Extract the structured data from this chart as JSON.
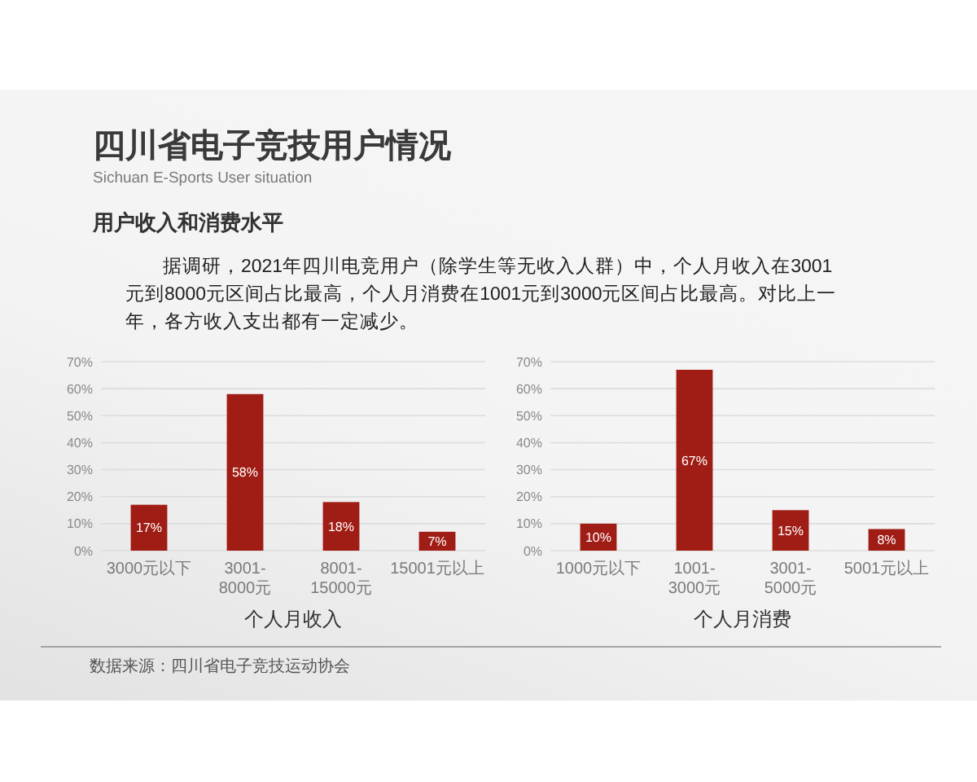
{
  "chart_data": [
    {
      "type": "bar",
      "title": "四川省电子竞技用户情况",
      "subtitle": "Sichuan E-Sports User situation",
      "annotations": [
        "用户收入和消费水平",
        "据调研，2021年四川电竞用户（除学生等无收入人群）中，个人月收入在3001元到8000元区间占比最高，个人月消费在1001元到3000元区间占比最高。对比上一年，各方收入支出都有一定减少。",
        "数据来源：四川省电子竞技运动协会"
      ],
      "xlabel": "个人月收入",
      "categories": [
        "3000元以下",
        "3001-8000元",
        "8001-15000元",
        "15001元以上"
      ],
      "values": [
        17,
        58,
        18,
        7
      ],
      "value_labels": [
        "17%",
        "58%",
        "18%",
        "7%"
      ],
      "color": "#a01d15",
      "ylim": [
        0,
        70
      ],
      "yticks": [
        {
          "value": 0,
          "label": "0%"
        },
        {
          "value": 10,
          "label": "10%"
        },
        {
          "value": 20,
          "label": "20%"
        },
        {
          "value": 30,
          "label": "30%"
        },
        {
          "value": 40,
          "label": "40%"
        },
        {
          "value": 50,
          "label": "50%"
        },
        {
          "value": 60,
          "label": "60%"
        },
        {
          "value": 70,
          "label": "70%"
        }
      ],
      "grid": "y"
    },
    {
      "type": "bar",
      "xlabel": "个人月消费",
      "categories": [
        "1000元以下",
        "1001-3000元",
        "3001-5000元",
        "5001元以上"
      ],
      "values": [
        10,
        67,
        15,
        8
      ],
      "value_labels": [
        "10%",
        "67%",
        "15%",
        "8%"
      ],
      "color": "#a01d15",
      "ylim": [
        0,
        70
      ],
      "yticks": [
        {
          "value": 0,
          "label": "0%"
        },
        {
          "value": 10,
          "label": "10%"
        },
        {
          "value": 20,
          "label": "20%"
        },
        {
          "value": 30,
          "label": "30%"
        },
        {
          "value": 40,
          "label": "40%"
        },
        {
          "value": 50,
          "label": "50%"
        },
        {
          "value": 60,
          "label": "60%"
        },
        {
          "value": 70,
          "label": "70%"
        }
      ],
      "grid": "y"
    }
  ]
}
